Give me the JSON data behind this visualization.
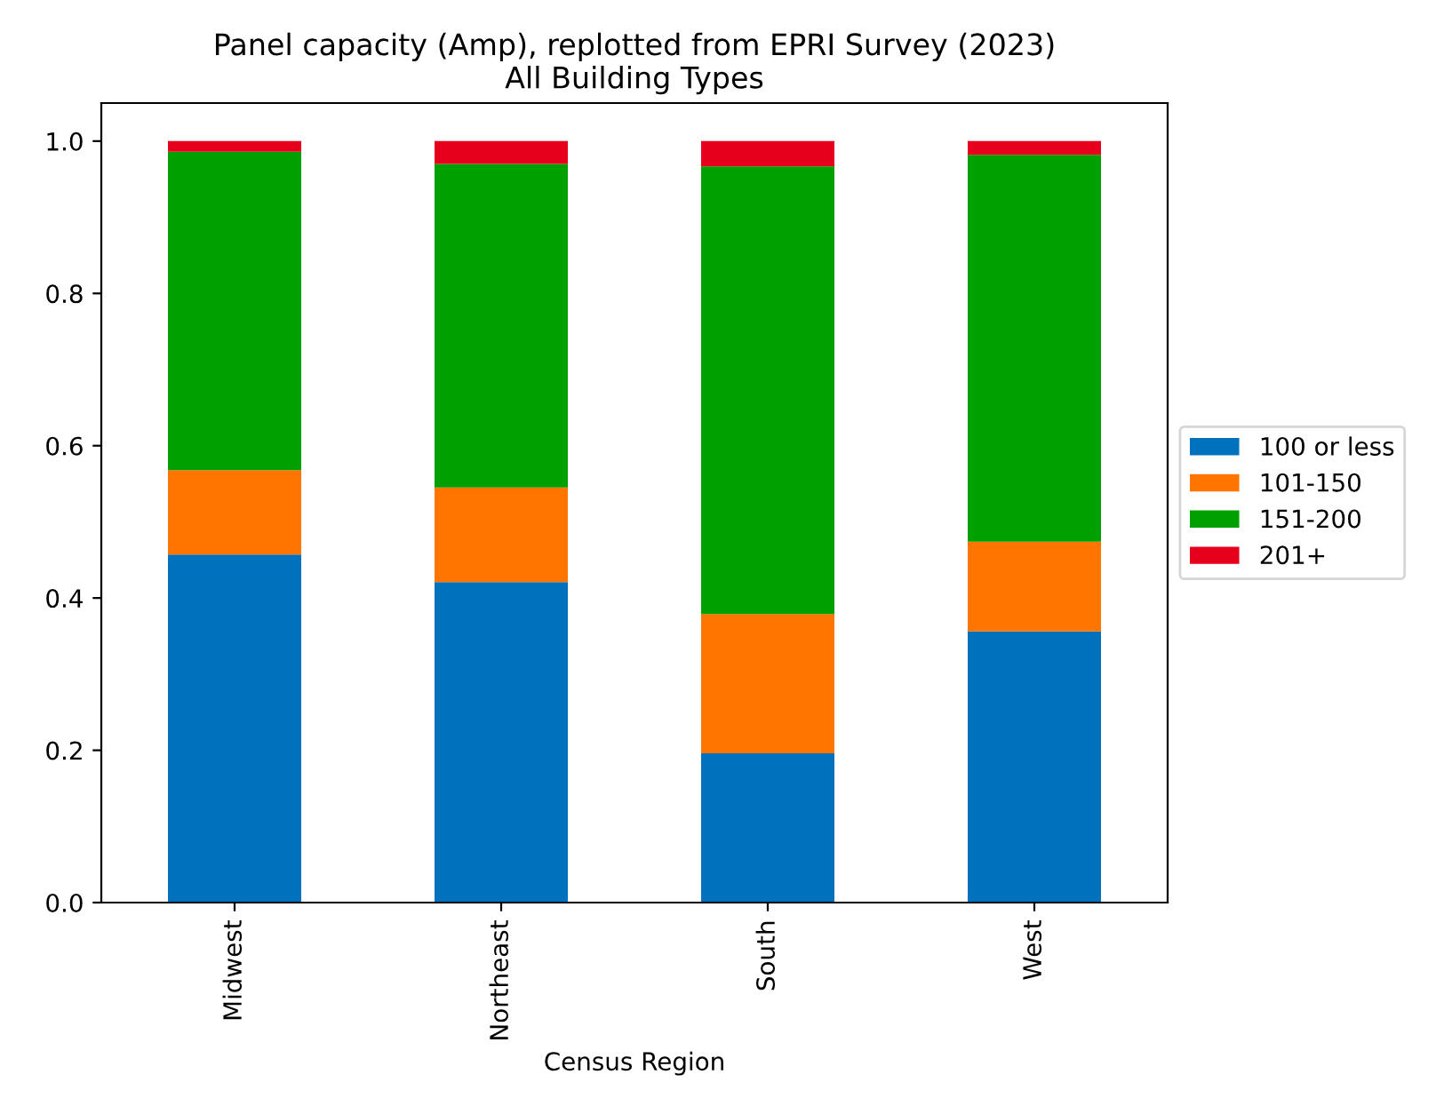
{
  "chart_data": {
    "type": "bar",
    "stacked": true,
    "title": "Panel capacity (Amp), replotted from EPRI Survey (2023)\nAll Building Types",
    "xlabel": "Census Region",
    "categories": [
      "Midwest",
      "Northeast",
      "South",
      "West"
    ],
    "series": [
      {
        "name": "100 or less",
        "color": "#0072bd",
        "values": [
          0.457,
          0.421,
          0.196,
          0.356
        ]
      },
      {
        "name": "101-150",
        "color": "#ff7500",
        "values": [
          0.111,
          0.124,
          0.183,
          0.118
        ]
      },
      {
        "name": "151-200",
        "color": "#00a000",
        "values": [
          0.418,
          0.425,
          0.588,
          0.508
        ]
      },
      {
        "name": "201+",
        "color": "#e6001b",
        "values": [
          0.014,
          0.03,
          0.033,
          0.018
        ]
      }
    ],
    "ylim": [
      0,
      1.05
    ],
    "yticks": [
      {
        "value": 0,
        "label": "0.0"
      },
      {
        "value": 0.2,
        "label": "0.2"
      },
      {
        "value": 0.4,
        "label": "0.4"
      },
      {
        "value": 0.6,
        "label": "0.6"
      },
      {
        "value": 0.8,
        "label": "0.8"
      },
      {
        "value": 1,
        "label": "1.0"
      }
    ],
    "legend": "right",
    "grid": false
  }
}
